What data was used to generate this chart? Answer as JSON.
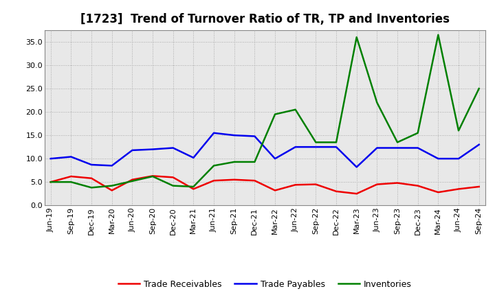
{
  "title": "[1723]  Trend of Turnover Ratio of TR, TP and Inventories",
  "categories": [
    "Jun-19",
    "Sep-19",
    "Dec-19",
    "Mar-20",
    "Jun-20",
    "Sep-20",
    "Dec-20",
    "Mar-21",
    "Jun-21",
    "Sep-21",
    "Dec-21",
    "Mar-22",
    "Jun-22",
    "Sep-22",
    "Dec-22",
    "Mar-23",
    "Jun-23",
    "Sep-23",
    "Dec-23",
    "Mar-24",
    "Jun-24",
    "Sep-24"
  ],
  "trade_receivables": [
    5.0,
    6.2,
    5.8,
    3.2,
    5.5,
    6.3,
    6.0,
    3.5,
    5.3,
    5.5,
    5.3,
    3.2,
    4.4,
    4.5,
    3.0,
    2.5,
    4.5,
    4.8,
    4.2,
    2.8,
    3.5,
    4.0
  ],
  "trade_payables": [
    10.0,
    10.4,
    8.7,
    8.5,
    11.8,
    12.0,
    12.3,
    10.2,
    15.5,
    15.0,
    14.8,
    10.0,
    12.5,
    12.5,
    12.5,
    8.2,
    12.3,
    12.3,
    12.3,
    10.0,
    10.0,
    13.0
  ],
  "inventories": [
    5.0,
    5.0,
    3.8,
    4.2,
    5.2,
    6.2,
    4.2,
    4.0,
    8.5,
    9.3,
    9.3,
    19.5,
    20.5,
    13.5,
    13.5,
    36.0,
    22.0,
    13.5,
    15.5,
    36.5,
    16.0,
    25.0
  ],
  "tr_color": "#ee0000",
  "tp_color": "#0000ee",
  "inv_color": "#008000",
  "tr_label": "Trade Receivables",
  "tp_label": "Trade Payables",
  "inv_label": "Inventories",
  "ylim": [
    0.0,
    37.5
  ],
  "yticks": [
    0.0,
    5.0,
    10.0,
    15.0,
    20.0,
    25.0,
    30.0,
    35.0
  ],
  "background_color": "#ffffff",
  "plot_bg_color": "#e8e8e8",
  "title_fontsize": 12,
  "legend_fontsize": 9,
  "axis_fontsize": 8,
  "linewidth": 1.8
}
